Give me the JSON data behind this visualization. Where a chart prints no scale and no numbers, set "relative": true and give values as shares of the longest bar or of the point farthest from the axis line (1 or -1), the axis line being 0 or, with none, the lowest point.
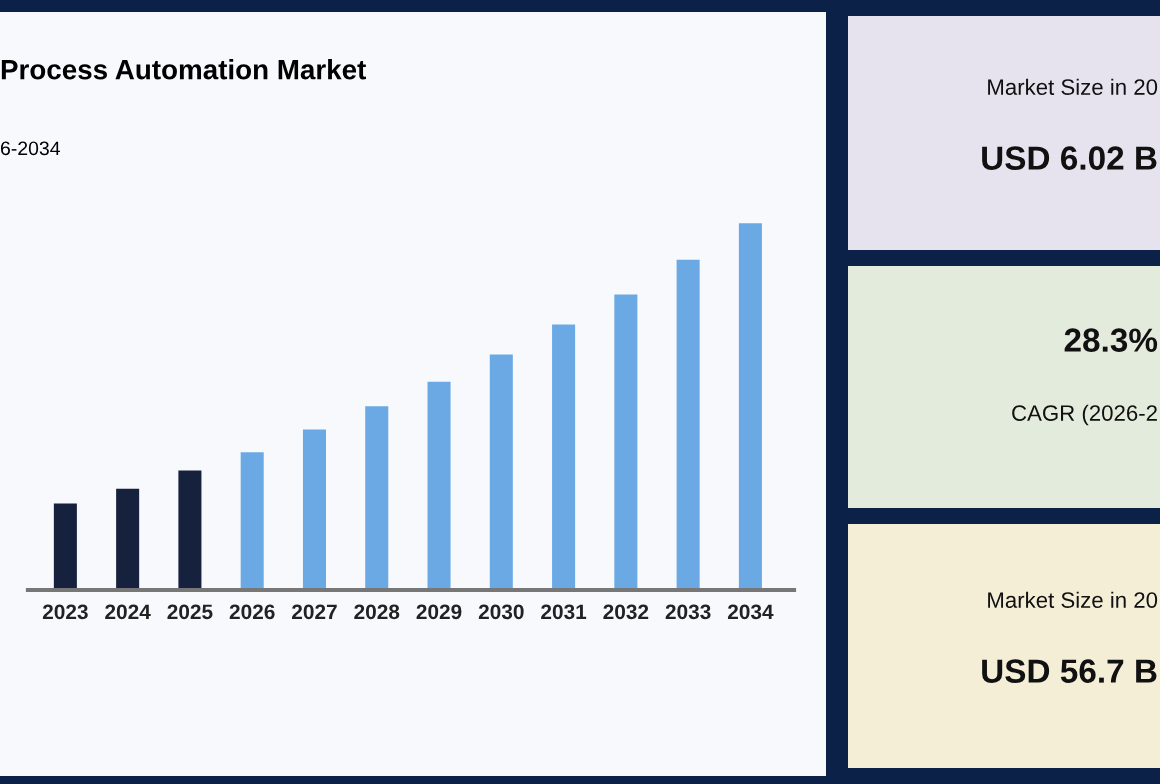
{
  "chart_data": [
    {
      "type": "bar",
      "title": "Process Automation Market",
      "subtitle": "6-2034",
      "relative": true,
      "categories": [
        "2023",
        "2024",
        "2025",
        "2026",
        "2027",
        "2028",
        "2029",
        "2030",
        "2031",
        "2032",
        "2033",
        "2034"
      ],
      "values": [
        0.236,
        0.276,
        0.326,
        0.376,
        0.438,
        0.501,
        0.568,
        0.642,
        0.724,
        0.806,
        0.901,
        1
      ],
      "colors": [
        "#16213d",
        "#16213d",
        "#16213d",
        "#6aa9e4",
        "#6aa9e4",
        "#6aa9e4",
        "#6aa9e4",
        "#6aa9e4",
        "#6aa9e4",
        "#6aa9e4",
        "#6aa9e4",
        "#6aa9e4"
      ],
      "grid": false,
      "legend": false
    },
    {
      "type": "other",
      "annotations": [
        "Market Size in 20",
        "USD 6.02 B"
      ]
    },
    {
      "type": "other",
      "annotations": [
        "28.3%",
        "CAGR (2026-2"
      ]
    },
    {
      "type": "other",
      "annotations": [
        "Market Size in 20",
        "USD 56.7 B"
      ]
    }
  ]
}
